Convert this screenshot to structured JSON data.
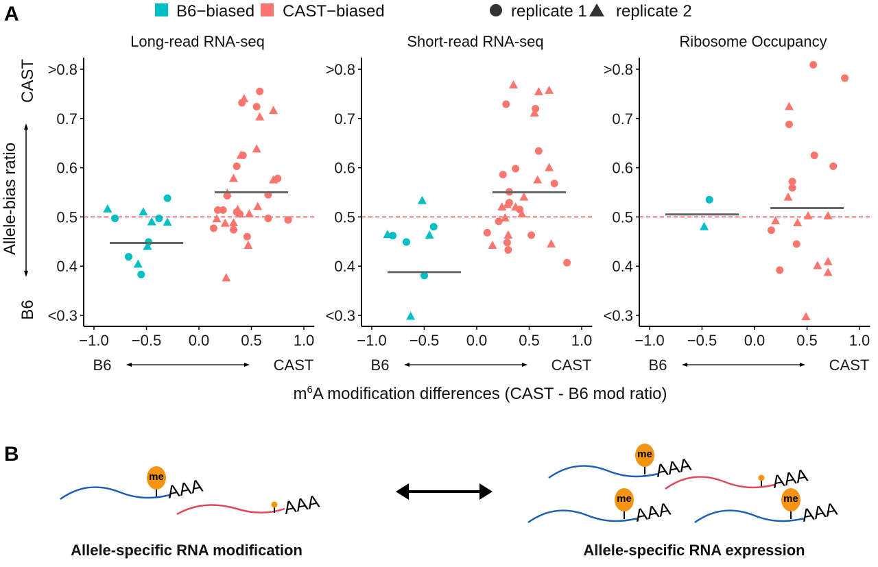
{
  "panel_letters": {
    "a": "A",
    "b": "B"
  },
  "legend": {
    "items": [
      {
        "label": "B6−biased",
        "shape": "square",
        "color": "#00BFC4"
      },
      {
        "label": "CAST−biased",
        "shape": "square",
        "color": "#F8766D"
      },
      {
        "label": "replicate 1",
        "shape": "circle",
        "color": "#333333"
      },
      {
        "label": "replicate 2",
        "shape": "triangle",
        "color": "#333333"
      }
    ]
  },
  "colors": {
    "b6": "#00BFC4",
    "cast": "#F8766D",
    "median": "#666666",
    "refline": "#E8474F",
    "me": "#F39415",
    "b6_rna": "#1A5FB4",
    "cast_rna": "#E0485A"
  },
  "y_axis": {
    "label": "Allele-bias ratio",
    "top_label": "CAST",
    "bottom_label": "B6"
  },
  "x_axis": {
    "label_prefix": "m",
    "label_sup": "6",
    "label_suffix": "A modification differences (CAST - B6 mod ratio)",
    "left_dir": "B6",
    "right_dir": "CAST"
  },
  "chart_data": [
    {
      "type": "scatter",
      "title": "Long-read RNA-seq",
      "xlim": [
        -1.1,
        1.1
      ],
      "ylim": [
        0.3,
        0.8
      ],
      "xticks": [
        "−1.0",
        "−0.5",
        "0.0",
        "0.5",
        "1.0"
      ],
      "xtick_values": [
        -1.0,
        -0.5,
        0.0,
        0.5,
        1.0
      ],
      "yticks": [
        "<0.3",
        "0.4",
        "0.5",
        "0.6",
        "0.7",
        ">0.8"
      ],
      "ytick_values": [
        0.3,
        0.4,
        0.5,
        0.6,
        0.7,
        0.8
      ],
      "reference_line_y": 0.5,
      "medians": [
        {
          "group": "B6-biased",
          "y": 0.447,
          "x_range": [
            -0.85,
            -0.15
          ]
        },
        {
          "group": "CAST-biased",
          "y": 0.55,
          "x_range": [
            0.15,
            0.85
          ]
        }
      ],
      "points": [
        {
          "x": -0.87,
          "y": 0.516,
          "g": "B6",
          "r": 2
        },
        {
          "x": -0.8,
          "y": 0.497,
          "g": "B6",
          "r": 1
        },
        {
          "x": -0.53,
          "y": 0.51,
          "g": "B6",
          "r": 2
        },
        {
          "x": -0.45,
          "y": 0.49,
          "g": "B6",
          "r": 2
        },
        {
          "x": -0.38,
          "y": 0.497,
          "g": "B6",
          "r": 1
        },
        {
          "x": -0.3,
          "y": 0.538,
          "g": "B6",
          "r": 1
        },
        {
          "x": -0.3,
          "y": 0.489,
          "g": "B6",
          "r": 2
        },
        {
          "x": -0.48,
          "y": 0.449,
          "g": "B6",
          "r": 1
        },
        {
          "x": -0.49,
          "y": 0.44,
          "g": "B6",
          "r": 2
        },
        {
          "x": -0.67,
          "y": 0.419,
          "g": "B6",
          "r": 1
        },
        {
          "x": -0.58,
          "y": 0.404,
          "g": "B6",
          "r": 2
        },
        {
          "x": -0.55,
          "y": 0.383,
          "g": "B6",
          "r": 1
        },
        {
          "x": 0.58,
          "y": 0.755,
          "g": "CAST",
          "r": 1
        },
        {
          "x": 0.43,
          "y": 0.74,
          "g": "CAST",
          "r": 2
        },
        {
          "x": 0.41,
          "y": 0.732,
          "g": "CAST",
          "r": 1
        },
        {
          "x": 0.55,
          "y": 0.724,
          "g": "CAST",
          "r": 1
        },
        {
          "x": 0.71,
          "y": 0.716,
          "g": "CAST",
          "r": 2
        },
        {
          "x": 0.58,
          "y": 0.703,
          "g": "CAST",
          "r": 2
        },
        {
          "x": 0.55,
          "y": 0.638,
          "g": "CAST",
          "r": 2
        },
        {
          "x": 0.42,
          "y": 0.625,
          "g": "CAST",
          "r": 1
        },
        {
          "x": 0.4,
          "y": 0.625,
          "g": "CAST",
          "r": 2
        },
        {
          "x": 0.36,
          "y": 0.603,
          "g": "CAST",
          "r": 1
        },
        {
          "x": 0.33,
          "y": 0.578,
          "g": "CAST",
          "r": 2
        },
        {
          "x": 0.75,
          "y": 0.578,
          "g": "CAST",
          "r": 1
        },
        {
          "x": 0.71,
          "y": 0.575,
          "g": "CAST",
          "r": 2
        },
        {
          "x": 0.27,
          "y": 0.548,
          "g": "CAST",
          "r": 2
        },
        {
          "x": 0.27,
          "y": 0.543,
          "g": "CAST",
          "r": 1
        },
        {
          "x": 0.66,
          "y": 0.545,
          "g": "CAST",
          "r": 1
        },
        {
          "x": 0.18,
          "y": 0.514,
          "g": "CAST",
          "r": 1
        },
        {
          "x": 0.23,
          "y": 0.514,
          "g": "CAST",
          "r": 1
        },
        {
          "x": 0.37,
          "y": 0.515,
          "g": "CAST",
          "r": 2
        },
        {
          "x": 0.36,
          "y": 0.51,
          "g": "CAST",
          "r": 1
        },
        {
          "x": 0.39,
          "y": 0.506,
          "g": "CAST",
          "r": 1
        },
        {
          "x": 0.56,
          "y": 0.521,
          "g": "CAST",
          "r": 2
        },
        {
          "x": 0.48,
          "y": 0.506,
          "g": "CAST",
          "r": 2
        },
        {
          "x": 0.66,
          "y": 0.497,
          "g": "CAST",
          "r": 1
        },
        {
          "x": 0.85,
          "y": 0.494,
          "g": "CAST",
          "r": 1
        },
        {
          "x": 0.17,
          "y": 0.496,
          "g": "CAST",
          "r": 2
        },
        {
          "x": 0.25,
          "y": 0.487,
          "g": "CAST",
          "r": 2
        },
        {
          "x": 0.33,
          "y": 0.488,
          "g": "CAST",
          "r": 2
        },
        {
          "x": 0.14,
          "y": 0.477,
          "g": "CAST",
          "r": 1
        },
        {
          "x": 0.33,
          "y": 0.474,
          "g": "CAST",
          "r": 1
        },
        {
          "x": 0.46,
          "y": 0.46,
          "g": "CAST",
          "r": 1
        },
        {
          "x": 0.47,
          "y": 0.442,
          "g": "CAST",
          "r": 2
        },
        {
          "x": 0.26,
          "y": 0.376,
          "g": "CAST",
          "r": 2
        }
      ]
    },
    {
      "type": "scatter",
      "title": "Short-read RNA-seq",
      "xlim": [
        -1.1,
        1.1
      ],
      "ylim": [
        0.3,
        0.8
      ],
      "xticks": [
        "−1.0",
        "−0.5",
        "0.0",
        "0.5",
        "1.0"
      ],
      "xtick_values": [
        -1.0,
        -0.5,
        0.0,
        0.5,
        1.0
      ],
      "yticks": [
        "<0.3",
        "0.4",
        "0.5",
        "0.6",
        "0.7",
        ">0.8"
      ],
      "ytick_values": [
        0.3,
        0.4,
        0.5,
        0.6,
        0.7,
        0.8
      ],
      "reference_line_y": 0.5,
      "medians": [
        {
          "group": "B6-biased",
          "y": 0.388,
          "x_range": [
            -0.85,
            -0.15
          ]
        },
        {
          "group": "CAST-biased",
          "y": 0.55,
          "x_range": [
            0.15,
            0.85
          ]
        }
      ],
      "points": [
        {
          "x": -0.52,
          "y": 0.533,
          "g": "B6",
          "r": 2
        },
        {
          "x": -0.41,
          "y": 0.48,
          "g": "B6",
          "r": 1
        },
        {
          "x": -0.85,
          "y": 0.464,
          "g": "B6",
          "r": 2
        },
        {
          "x": -0.8,
          "y": 0.462,
          "g": "B6",
          "r": 1
        },
        {
          "x": -0.45,
          "y": 0.463,
          "g": "B6",
          "r": 2
        },
        {
          "x": -0.67,
          "y": 0.449,
          "g": "B6",
          "r": 1
        },
        {
          "x": -0.5,
          "y": 0.381,
          "g": "B6",
          "r": 1
        },
        {
          "x": -0.63,
          "y": 0.298,
          "g": "B6",
          "r": 2
        },
        {
          "x": 0.35,
          "y": 0.768,
          "g": "CAST",
          "r": 2
        },
        {
          "x": 0.59,
          "y": 0.754,
          "g": "CAST",
          "r": 2
        },
        {
          "x": 0.69,
          "y": 0.757,
          "g": "CAST",
          "r": 2
        },
        {
          "x": 0.28,
          "y": 0.729,
          "g": "CAST",
          "r": 1
        },
        {
          "x": 0.56,
          "y": 0.72,
          "g": "CAST",
          "r": 1
        },
        {
          "x": 0.55,
          "y": 0.711,
          "g": "CAST",
          "r": 2
        },
        {
          "x": 0.59,
          "y": 0.634,
          "g": "CAST",
          "r": 1
        },
        {
          "x": 0.37,
          "y": 0.598,
          "g": "CAST",
          "r": 1
        },
        {
          "x": 0.69,
          "y": 0.6,
          "g": "CAST",
          "r": 2
        },
        {
          "x": 0.25,
          "y": 0.586,
          "g": "CAST",
          "r": 1
        },
        {
          "x": 0.58,
          "y": 0.575,
          "g": "CAST",
          "r": 2
        },
        {
          "x": 0.74,
          "y": 0.568,
          "g": "CAST",
          "r": 1
        },
        {
          "x": 0.31,
          "y": 0.551,
          "g": "CAST",
          "r": 1
        },
        {
          "x": 0.45,
          "y": 0.54,
          "g": "CAST",
          "r": 2
        },
        {
          "x": 0.24,
          "y": 0.52,
          "g": "CAST",
          "r": 2
        },
        {
          "x": 0.31,
          "y": 0.529,
          "g": "CAST",
          "r": 1
        },
        {
          "x": 0.29,
          "y": 0.525,
          "g": "CAST",
          "r": 2
        },
        {
          "x": 0.37,
          "y": 0.52,
          "g": "CAST",
          "r": 2
        },
        {
          "x": 0.41,
          "y": 0.515,
          "g": "CAST",
          "r": 1
        },
        {
          "x": 0.43,
          "y": 0.506,
          "g": "CAST",
          "r": 2
        },
        {
          "x": 0.27,
          "y": 0.498,
          "g": "CAST",
          "r": 2
        },
        {
          "x": 0.21,
          "y": 0.491,
          "g": "CAST",
          "r": 1
        },
        {
          "x": 0.1,
          "y": 0.468,
          "g": "CAST",
          "r": 1
        },
        {
          "x": 0.3,
          "y": 0.463,
          "g": "CAST",
          "r": 2
        },
        {
          "x": 0.52,
          "y": 0.463,
          "g": "CAST",
          "r": 1
        },
        {
          "x": 0.29,
          "y": 0.448,
          "g": "CAST",
          "r": 1
        },
        {
          "x": 0.15,
          "y": 0.442,
          "g": "CAST",
          "r": 2
        },
        {
          "x": 0.71,
          "y": 0.445,
          "g": "CAST",
          "r": 2
        },
        {
          "x": 0.3,
          "y": 0.433,
          "g": "CAST",
          "r": 1
        },
        {
          "x": 0.86,
          "y": 0.407,
          "g": "CAST",
          "r": 1
        }
      ]
    },
    {
      "type": "scatter",
      "title": "Ribosome Occupancy",
      "xlim": [
        -1.1,
        1.1
      ],
      "ylim": [
        0.3,
        0.8
      ],
      "xticks": [
        "−1.0",
        "−0.5",
        "0.0",
        "0.5",
        "1.0"
      ],
      "xtick_values": [
        -1.0,
        -0.5,
        0.0,
        0.5,
        1.0
      ],
      "yticks": [
        "<0.3",
        "0.4",
        "0.5",
        "0.6",
        "0.7",
        ">0.8"
      ],
      "ytick_values": [
        0.3,
        0.4,
        0.5,
        0.6,
        0.7,
        0.8
      ],
      "reference_line_y": 0.5,
      "medians": [
        {
          "group": "B6-biased",
          "y": 0.505,
          "x_range": [
            -0.85,
            -0.15
          ]
        },
        {
          "group": "CAST-biased",
          "y": 0.518,
          "x_range": [
            0.15,
            0.85
          ]
        }
      ],
      "points": [
        {
          "x": -0.43,
          "y": 0.535,
          "g": "B6",
          "r": 1
        },
        {
          "x": -0.48,
          "y": 0.48,
          "g": "B6",
          "r": 2
        },
        {
          "x": 0.56,
          "y": 0.809,
          "g": "CAST",
          "r": 1
        },
        {
          "x": 0.86,
          "y": 0.782,
          "g": "CAST",
          "r": 1
        },
        {
          "x": 0.33,
          "y": 0.724,
          "g": "CAST",
          "r": 2
        },
        {
          "x": 0.33,
          "y": 0.688,
          "g": "CAST",
          "r": 1
        },
        {
          "x": 0.57,
          "y": 0.625,
          "g": "CAST",
          "r": 1
        },
        {
          "x": 0.75,
          "y": 0.603,
          "g": "CAST",
          "r": 1
        },
        {
          "x": 0.36,
          "y": 0.572,
          "g": "CAST",
          "r": 1
        },
        {
          "x": 0.36,
          "y": 0.559,
          "g": "CAST",
          "r": 1
        },
        {
          "x": 0.32,
          "y": 0.54,
          "g": "CAST",
          "r": 2
        },
        {
          "x": 0.51,
          "y": 0.502,
          "g": "CAST",
          "r": 2
        },
        {
          "x": 0.7,
          "y": 0.502,
          "g": "CAST",
          "r": 2
        },
        {
          "x": 0.2,
          "y": 0.492,
          "g": "CAST",
          "r": 2
        },
        {
          "x": 0.41,
          "y": 0.488,
          "g": "CAST",
          "r": 2
        },
        {
          "x": 0.16,
          "y": 0.473,
          "g": "CAST",
          "r": 1
        },
        {
          "x": 0.4,
          "y": 0.445,
          "g": "CAST",
          "r": 1
        },
        {
          "x": 0.6,
          "y": 0.401,
          "g": "CAST",
          "r": 2
        },
        {
          "x": 0.7,
          "y": 0.409,
          "g": "CAST",
          "r": 2
        },
        {
          "x": 0.24,
          "y": 0.392,
          "g": "CAST",
          "r": 1
        },
        {
          "x": 0.7,
          "y": 0.387,
          "g": "CAST",
          "r": 2
        },
        {
          "x": 0.49,
          "y": 0.297,
          "g": "CAST",
          "r": 2
        }
      ]
    }
  ],
  "panel_b": {
    "me_label": "me",
    "polya_label": "AAA",
    "left_caption": "Allele-specific RNA modification",
    "right_caption": "Allele-specific RNA expression"
  }
}
